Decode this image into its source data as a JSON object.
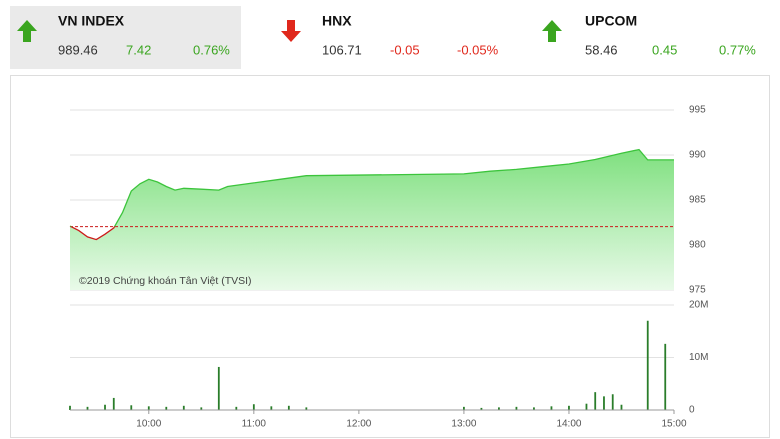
{
  "indices": [
    {
      "name": "VN INDEX",
      "value": "989.46",
      "change": "7.42",
      "change_pct": "0.76%"
    },
    {
      "name": "HNX",
      "value": "106.71",
      "change": "-0.05",
      "change_pct": "-0.05%"
    },
    {
      "name": "UPCOM",
      "value": "58.46",
      "change": "0.45",
      "change_pct": "0.77%"
    }
  ],
  "chart_data": [
    {
      "type": "line",
      "x": [
        "09:15",
        "09:20",
        "09:25",
        "09:30",
        "09:35",
        "09:40",
        "09:45",
        "09:50",
        "09:55",
        "10:00",
        "10:05",
        "10:10",
        "10:15",
        "10:20",
        "10:30",
        "10:40",
        "10:45",
        "11:00",
        "11:15",
        "11:30",
        "13:00",
        "13:15",
        "13:30",
        "13:45",
        "14:00",
        "14:15",
        "14:30",
        "14:40",
        "14:45",
        "15:00"
      ],
      "values": [
        982.1,
        981.6,
        980.9,
        980.6,
        981.2,
        981.9,
        983.6,
        986.0,
        986.8,
        987.3,
        987.0,
        986.5,
        986.1,
        986.3,
        986.2,
        986.1,
        986.5,
        986.9,
        987.3,
        987.7,
        987.9,
        988.2,
        988.4,
        988.7,
        989.0,
        989.5,
        990.2,
        990.6,
        989.46,
        989.46
      ],
      "color": "#3cc43c",
      "down_color": "#cc1a1a",
      "reference_value": 982.04,
      "ylim": [
        975,
        995
      ],
      "yticks": [
        975,
        980,
        985,
        990,
        995
      ],
      "annotation": "©2019 Chứng khoán Tân Việt (TVSI)"
    },
    {
      "type": "bar",
      "x": [
        "09:15",
        "09:25",
        "09:35",
        "09:40",
        "09:50",
        "10:00",
        "10:10",
        "10:20",
        "10:30",
        "10:40",
        "10:50",
        "11:00",
        "11:10",
        "11:20",
        "11:30",
        "13:00",
        "13:10",
        "13:20",
        "13:30",
        "13:40",
        "13:50",
        "14:00",
        "14:10",
        "14:15",
        "14:20",
        "14:25",
        "14:30",
        "14:45",
        "14:55"
      ],
      "values": [
        0.8,
        0.6,
        1.0,
        2.3,
        0.9,
        0.7,
        0.6,
        0.8,
        0.5,
        8.2,
        0.6,
        1.1,
        0.7,
        0.8,
        0.5,
        0.6,
        0.4,
        0.5,
        0.6,
        0.5,
        0.7,
        0.8,
        1.2,
        3.4,
        2.6,
        3.0,
        1.0,
        17.0,
        12.6
      ],
      "color": "#2a7d2a",
      "ylim": [
        0,
        20
      ],
      "yticks": [
        0,
        {
          "value": 10,
          "label": "10M"
        },
        {
          "value": 20,
          "label": "20M"
        }
      ],
      "xticks": [
        "10:00",
        "11:00",
        "12:00",
        "13:00",
        "14:00",
        "15:00"
      ]
    }
  ]
}
